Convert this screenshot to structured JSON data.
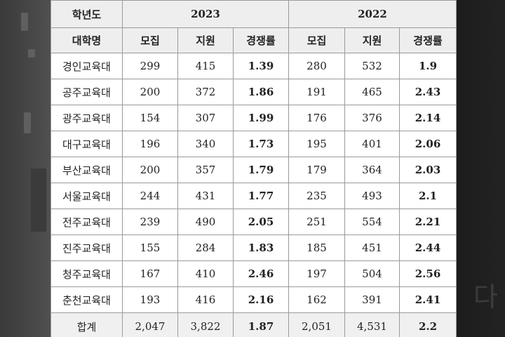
{
  "header": {
    "year_label": "학년도",
    "university_label": "대학명",
    "years": [
      "2023",
      "2022"
    ],
    "columns": [
      "모집",
      "지원",
      "경쟁률",
      "모집",
      "지원",
      "경쟁률"
    ]
  },
  "rows": [
    {
      "name": "경인교육대",
      "r2023": "299",
      "a2023": "415",
      "c2023": "1.39",
      "r2022": "280",
      "a2022": "532",
      "c2022": "1.9"
    },
    {
      "name": "공주교육대",
      "r2023": "200",
      "a2023": "372",
      "c2023": "1.86",
      "r2022": "191",
      "a2022": "465",
      "c2022": "2.43"
    },
    {
      "name": "광주교육대",
      "r2023": "154",
      "a2023": "307",
      "c2023": "1.99",
      "r2022": "176",
      "a2022": "376",
      "c2022": "2.14"
    },
    {
      "name": "대구교육대",
      "r2023": "196",
      "a2023": "340",
      "c2023": "1.73",
      "r2022": "195",
      "a2022": "401",
      "c2022": "2.06"
    },
    {
      "name": "부산교육대",
      "r2023": "200",
      "a2023": "357",
      "c2023": "1.79",
      "r2022": "179",
      "a2022": "364",
      "c2022": "2.03"
    },
    {
      "name": "서울교육대",
      "r2023": "244",
      "a2023": "431",
      "c2023": "1.77",
      "r2022": "235",
      "a2022": "493",
      "c2022": "2.1"
    },
    {
      "name": "전주교육대",
      "r2023": "239",
      "a2023": "490",
      "c2023": "2.05",
      "r2022": "251",
      "a2022": "554",
      "c2022": "2.21"
    },
    {
      "name": "진주교육대",
      "r2023": "155",
      "a2023": "284",
      "c2023": "1.83",
      "r2022": "185",
      "a2022": "451",
      "c2022": "2.44"
    },
    {
      "name": "청주교육대",
      "r2023": "167",
      "a2023": "410",
      "c2023": "2.46",
      "r2022": "197",
      "a2022": "504",
      "c2022": "2.56"
    },
    {
      "name": "춘천교육대",
      "r2023": "193",
      "a2023": "416",
      "c2023": "2.16",
      "r2022": "162",
      "a2022": "391",
      "c2022": "2.41"
    }
  ],
  "total": {
    "name": "합계",
    "r2023": "2,047",
    "a2023": "3,822",
    "c2023": "1.87",
    "r2022": "2,051",
    "a2022": "4,531",
    "c2022": "2.2"
  },
  "background": {
    "watermark": "다"
  },
  "colors": {
    "header_bg": "#eeeeee",
    "border": "#9a9a9a",
    "backdrop": "#2b2b2b"
  }
}
